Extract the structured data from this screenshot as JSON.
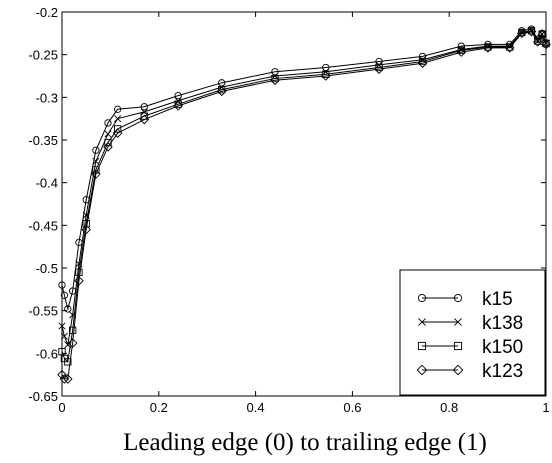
{
  "chart_data": {
    "type": "line",
    "title": "",
    "xlabel": "Leading edge (0) to trailing edge (1)",
    "ylabel": "",
    "xlim": [
      0,
      1
    ],
    "ylim": [
      -0.65,
      -0.2
    ],
    "xticks": [
      0,
      0.2,
      0.4,
      0.6,
      0.8,
      1
    ],
    "xtick_labels": [
      "0",
      "0.2",
      "0.4",
      "0.6",
      "0.8",
      "1"
    ],
    "yticks": [
      -0.65,
      -0.6,
      -0.55,
      -0.5,
      -0.45,
      -0.4,
      -0.35,
      -0.3,
      -0.25,
      -0.2
    ],
    "ytick_labels": [
      "-0.65",
      "-0.6",
      "-0.55",
      "-0.5",
      "-0.45",
      "-0.4",
      "-0.35",
      "-0.3",
      "-0.25",
      "-0.2"
    ],
    "grid": false,
    "legend_position": "bottom-right",
    "x": [
      0,
      0.005,
      0.012,
      0.022,
      0.035,
      0.05,
      0.07,
      0.095,
      0.115,
      0.17,
      0.24,
      0.33,
      0.44,
      0.545,
      0.655,
      0.745,
      0.825,
      0.88,
      0.925,
      0.95,
      0.97,
      0.983,
      0.992,
      1.0
    ],
    "series": [
      {
        "name": "k15",
        "marker": "circle",
        "values": [
          -0.52,
          -0.532,
          -0.548,
          -0.527,
          -0.47,
          -0.42,
          -0.362,
          -0.33,
          -0.314,
          -0.311,
          -0.298,
          -0.283,
          -0.27,
          -0.265,
          -0.258,
          -0.252,
          -0.24,
          -0.238,
          -0.238,
          -0.222,
          -0.22,
          -0.232,
          -0.225,
          -0.236
        ]
      },
      {
        "name": "k138",
        "marker": "x",
        "values": [
          -0.568,
          -0.58,
          -0.59,
          -0.555,
          -0.495,
          -0.438,
          -0.375,
          -0.343,
          -0.325,
          -0.317,
          -0.304,
          -0.288,
          -0.275,
          -0.27,
          -0.262,
          -0.256,
          -0.244,
          -0.24,
          -0.24,
          -0.224,
          -0.222,
          -0.234,
          -0.226,
          -0.236
        ]
      },
      {
        "name": "k150",
        "marker": "square",
        "values": [
          -0.598,
          -0.606,
          -0.61,
          -0.573,
          -0.505,
          -0.448,
          -0.385,
          -0.353,
          -0.337,
          -0.322,
          -0.308,
          -0.291,
          -0.278,
          -0.273,
          -0.265,
          -0.258,
          -0.245,
          -0.241,
          -0.241,
          -0.224,
          -0.222,
          -0.234,
          -0.226,
          -0.237
        ]
      },
      {
        "name": "k123",
        "marker": "diamond",
        "values": [
          -0.625,
          -0.63,
          -0.63,
          -0.588,
          -0.515,
          -0.455,
          -0.39,
          -0.358,
          -0.342,
          -0.326,
          -0.31,
          -0.293,
          -0.28,
          -0.275,
          -0.267,
          -0.26,
          -0.247,
          -0.242,
          -0.242,
          -0.225,
          -0.223,
          -0.235,
          -0.227,
          -0.238
        ]
      }
    ]
  }
}
